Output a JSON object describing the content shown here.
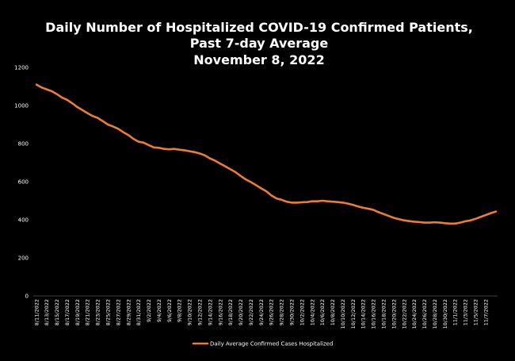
{
  "chart_data": {
    "type": "line",
    "title_lines": [
      "Daily Number of Hospitalized COVID-19 Confirmed Patients,",
      "Past 7-day Average",
      "November 8, 2022"
    ],
    "xlabel": "",
    "ylabel": "",
    "ylim": [
      0,
      1200
    ],
    "yticks": [
      0,
      200,
      400,
      600,
      800,
      1000,
      1200
    ],
    "grid": false,
    "legend_position": "bottom",
    "colors": {
      "background": "#000000",
      "text": "#ffffff",
      "series": "#ed7d31"
    },
    "x_tick_labels": [
      "8/11/2022",
      "8/13/2022",
      "8/15/2022",
      "8/17/2022",
      "8/19/2022",
      "8/21/2022",
      "8/23/2022",
      "8/25/2022",
      "8/27/2022",
      "8/29/2022",
      "8/31/2022",
      "9/2/2022",
      "9/4/2022",
      "9/6/2022",
      "9/8/2022",
      "9/10/2022",
      "9/12/2022",
      "9/14/2022",
      "9/16/2022",
      "9/18/2022",
      "9/20/2022",
      "9/22/2022",
      "9/24/2022",
      "9/26/2022",
      "9/28/2022",
      "9/30/2022",
      "10/2/2022",
      "10/4/2022",
      "10/6/2022",
      "10/8/2022",
      "10/10/2022",
      "10/12/2022",
      "10/14/2022",
      "10/16/2022",
      "10/18/2022",
      "10/20/2022",
      "10/22/2022",
      "10/24/2022",
      "10/26/2022",
      "10/28/2022",
      "10/30/2022",
      "11/1/2022",
      "11/3/2022",
      "11/5/2022",
      "11/7/2022"
    ],
    "series": [
      {
        "name": "Daily Average Confirmed Cases Hospitalized",
        "values": [
          1110,
          1095,
          1085,
          1075,
          1060,
          1042,
          1030,
          1012,
          992,
          976,
          960,
          945,
          935,
          918,
          900,
          890,
          878,
          860,
          845,
          825,
          810,
          805,
          792,
          780,
          778,
          772,
          770,
          772,
          768,
          765,
          760,
          755,
          748,
          738,
          722,
          710,
          695,
          680,
          665,
          650,
          630,
          612,
          598,
          582,
          565,
          550,
          528,
          512,
          505,
          495,
          490,
          490,
          492,
          493,
          497,
          497,
          500,
          497,
          495,
          493,
          490,
          485,
          478,
          470,
          463,
          458,
          452,
          440,
          430,
          420,
          410,
          403,
          397,
          393,
          390,
          388,
          385,
          385,
          387,
          385,
          382,
          380,
          380,
          385,
          392,
          397,
          405,
          415,
          425,
          435,
          443
        ]
      }
    ]
  }
}
